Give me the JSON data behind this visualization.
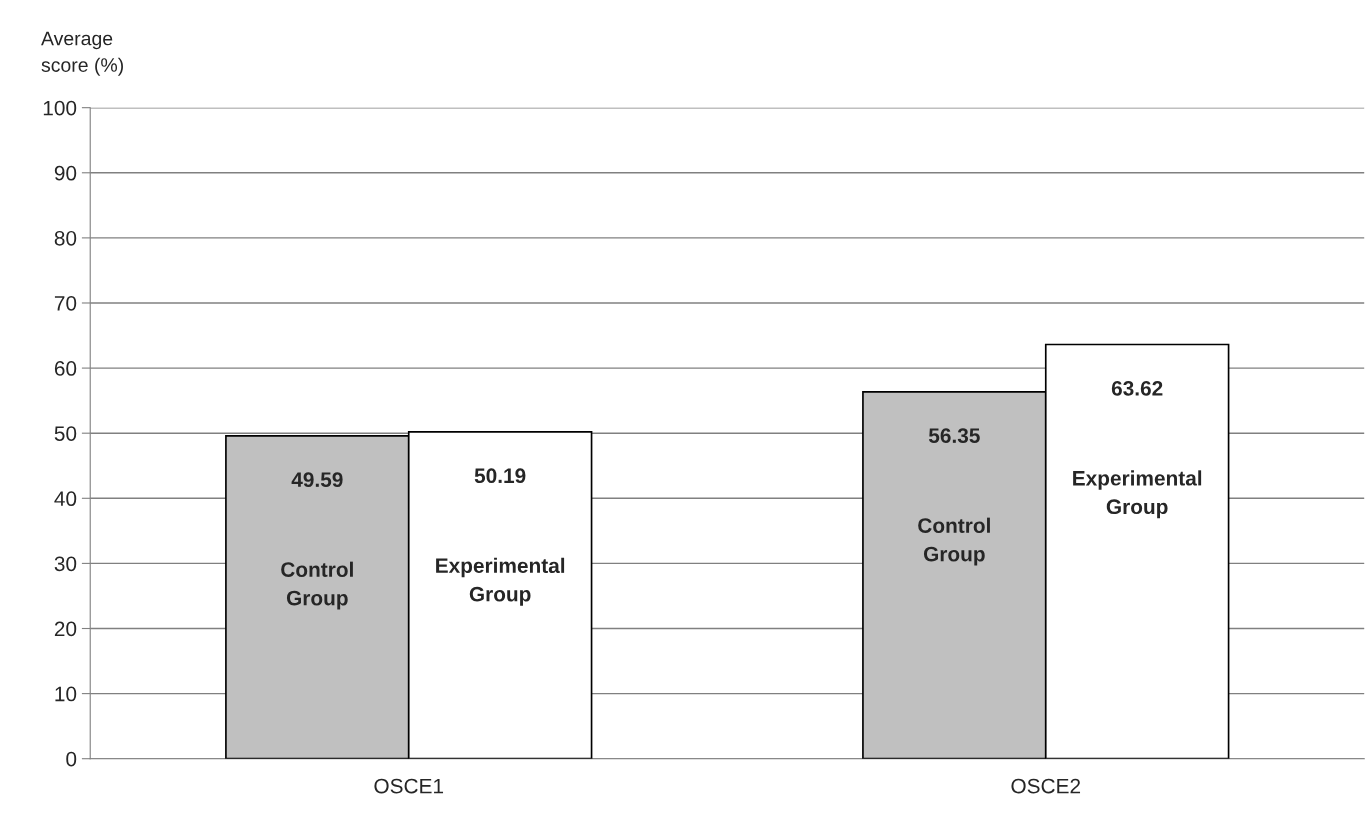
{
  "chart_data": {
    "type": "bar",
    "ylabel": "Average score (%)",
    "categories": [
      "OSCE1",
      "OSCE2"
    ],
    "series": [
      {
        "name": "Control Group",
        "color": "#c0c0c0",
        "values": [
          49.59,
          56.35
        ]
      },
      {
        "name": "Experimental Group",
        "color": "#ffffff",
        "values": [
          50.19,
          63.62
        ]
      }
    ],
    "ylim": [
      0,
      100
    ],
    "yticks": [
      0,
      10,
      20,
      30,
      40,
      50,
      60,
      70,
      80,
      90,
      100
    ],
    "grid": "y",
    "data_labels": true,
    "legend": false
  }
}
